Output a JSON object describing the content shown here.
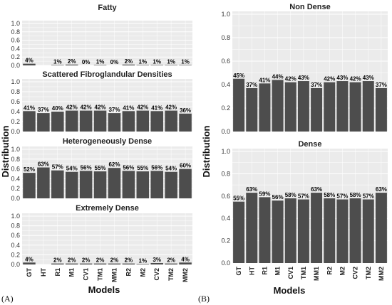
{
  "figure": {
    "panel_a_label": "(A)",
    "panel_b_label": "(B)",
    "a_xlabel": "Models",
    "a_ylabel": "Distribution",
    "b_xlabel": "Models",
    "b_ylabel": "Distribution"
  },
  "chart_data": [
    {
      "type": "bar",
      "panel": "A",
      "title": "Fatty",
      "categories": [
        "GT",
        "HT",
        "R1",
        "M1",
        "CV1",
        "TM1",
        "MM1",
        "R2",
        "M2",
        "CV2",
        "TM2",
        "MM2"
      ],
      "values": [
        0.04,
        0.0,
        0.01,
        0.02,
        0.0,
        0.01,
        0.0,
        0.02,
        0.01,
        0.01,
        0.01,
        0.01
      ],
      "labels": [
        "4%",
        "",
        "1%",
        "2%",
        "0%",
        "1%",
        "0%",
        "2%",
        "1%",
        "1%",
        "1%",
        "1%"
      ],
      "ylim": [
        0,
        1.0
      ],
      "yticks": [
        "0.0",
        "0.2",
        "0.4",
        "0.6",
        "0.8",
        "1.0"
      ],
      "grid": true
    },
    {
      "type": "bar",
      "panel": "A",
      "title": "Scattered Fibroglandular Densities",
      "categories": [
        "GT",
        "HT",
        "R1",
        "M1",
        "CV1",
        "TM1",
        "MM1",
        "R2",
        "M2",
        "CV2",
        "TM2",
        "MM2"
      ],
      "values": [
        0.41,
        0.37,
        0.4,
        0.42,
        0.42,
        0.42,
        0.37,
        0.41,
        0.42,
        0.41,
        0.42,
        0.36
      ],
      "labels": [
        "41%",
        "37%",
        "40%",
        "42%",
        "42%",
        "42%",
        "37%",
        "41%",
        "42%",
        "41%",
        "42%",
        "36%"
      ],
      "ylim": [
        0,
        1.0
      ],
      "yticks": [
        "0.0",
        "0.2",
        "0.4",
        "0.6",
        "0.8",
        "1.0"
      ],
      "grid": true
    },
    {
      "type": "bar",
      "panel": "A",
      "title": "Heterogeneously Dense",
      "categories": [
        "GT",
        "HT",
        "R1",
        "M1",
        "CV1",
        "TM1",
        "MM1",
        "R2",
        "M2",
        "CV2",
        "TM2",
        "MM2"
      ],
      "values": [
        0.52,
        0.63,
        0.57,
        0.54,
        0.56,
        0.55,
        0.62,
        0.56,
        0.55,
        0.56,
        0.54,
        0.6
      ],
      "labels": [
        "52%",
        "63%",
        "57%",
        "54%",
        "56%",
        "55%",
        "62%",
        "56%",
        "55%",
        "56%",
        "54%",
        "60%"
      ],
      "ylim": [
        0,
        1.0
      ],
      "yticks": [
        "0.0",
        "0.2",
        "0.4",
        "0.6",
        "0.8",
        "1.0"
      ],
      "grid": true
    },
    {
      "type": "bar",
      "panel": "A",
      "title": "Extremely Dense",
      "categories": [
        "GT",
        "HT",
        "R1",
        "M1",
        "CV1",
        "TM1",
        "MM1",
        "R2",
        "M2",
        "CV2",
        "TM2",
        "MM2"
      ],
      "values": [
        0.04,
        0.0,
        0.02,
        0.02,
        0.02,
        0.02,
        0.02,
        0.02,
        0.01,
        0.03,
        0.02,
        0.04
      ],
      "labels": [
        "4%",
        "",
        "2%",
        "2%",
        "2%",
        "2%",
        "2%",
        "2%",
        "1%",
        "3%",
        "2%",
        "4%"
      ],
      "ylim": [
        0,
        1.0
      ],
      "yticks": [
        "0.0",
        "0.2",
        "0.4",
        "0.6",
        "0.8",
        "1.0"
      ],
      "grid": true,
      "show_xticks": true
    },
    {
      "type": "bar",
      "panel": "B",
      "title": "Non Dense",
      "categories": [
        "GT",
        "HT",
        "R1",
        "M1",
        "CV1",
        "TM1",
        "MM1",
        "R2",
        "M2",
        "CV2",
        "TM2",
        "MM2"
      ],
      "values": [
        0.45,
        0.37,
        0.41,
        0.44,
        0.42,
        0.43,
        0.37,
        0.42,
        0.43,
        0.42,
        0.43,
        0.37
      ],
      "labels": [
        "45%",
        "37%",
        "41%",
        "44%",
        "42%",
        "43%",
        "37%",
        "42%",
        "43%",
        "42%",
        "43%",
        "37%"
      ],
      "ylim": [
        0,
        1.0
      ],
      "yticks": [
        "0.0",
        "0.2",
        "0.4",
        "0.6",
        "0.8",
        "1.0"
      ],
      "grid": true
    },
    {
      "type": "bar",
      "panel": "B",
      "title": "Dense",
      "categories": [
        "GT",
        "HT",
        "R1",
        "M1",
        "CV1",
        "TM1",
        "MM1",
        "R2",
        "M2",
        "CV2",
        "TM2",
        "MM2"
      ],
      "values": [
        0.55,
        0.63,
        0.59,
        0.56,
        0.58,
        0.57,
        0.63,
        0.58,
        0.57,
        0.58,
        0.57,
        0.63
      ],
      "labels": [
        "55%",
        "63%",
        "59%",
        "56%",
        "58%",
        "57%",
        "63%",
        "58%",
        "57%",
        "58%",
        "57%",
        "63%"
      ],
      "ylim": [
        0,
        1.0
      ],
      "yticks": [
        "0.0",
        "0.2",
        "0.4",
        "0.6",
        "0.8",
        "1.0"
      ],
      "grid": true,
      "show_xticks": true
    }
  ],
  "colors": {
    "bar": "#4d4d4d",
    "panel_bg": "#ebebeb",
    "grid": "#ffffff",
    "strip": "#ffffff"
  }
}
